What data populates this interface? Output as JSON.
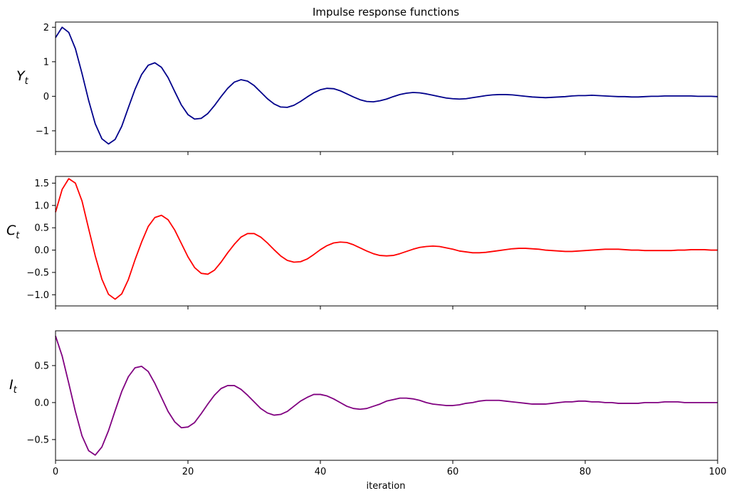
{
  "chart_data": {
    "type": "line",
    "title": "Impulse response functions",
    "xlabel": "iteration",
    "xlim": [
      0,
      100
    ],
    "xticks": [
      0,
      20,
      40,
      60,
      80,
      100
    ],
    "grid": false,
    "panels": [
      {
        "id": "Y",
        "ylabel": "Y",
        "ylabel_sub": "t",
        "color": "#00008b",
        "ylim": [
          -1.6,
          2.15
        ],
        "yticks": [
          -1,
          0,
          1,
          2
        ],
        "ytick_labels": [
          "−1",
          "0",
          "1",
          "2"
        ],
        "series": [
          {
            "values": [
              1.7,
              2.0,
              1.85,
              1.38,
              0.66,
              -0.12,
              -0.8,
              -1.23,
              -1.38,
              -1.25,
              -0.87,
              -0.33,
              0.2,
              0.63,
              0.9,
              0.97,
              0.84,
              0.54,
              0.14,
              -0.25,
              -0.53,
              -0.66,
              -0.64,
              -0.5,
              -0.27,
              -0.01,
              0.23,
              0.41,
              0.48,
              0.44,
              0.31,
              0.12,
              -0.07,
              -0.22,
              -0.31,
              -0.32,
              -0.26,
              -0.15,
              -0.02,
              0.1,
              0.19,
              0.23,
              0.22,
              0.16,
              0.07,
              -0.02,
              -0.1,
              -0.15,
              -0.16,
              -0.13,
              -0.08,
              -0.01,
              0.05,
              0.09,
              0.11,
              0.1,
              0.07,
              0.03,
              -0.01,
              -0.05,
              -0.07,
              -0.08,
              -0.07,
              -0.04,
              -0.01,
              0.02,
              0.04,
              0.05,
              0.05,
              0.04,
              0.02,
              -0.0,
              -0.02,
              -0.03,
              -0.04,
              -0.03,
              -0.02,
              -0.01,
              0.01,
              0.02,
              0.02,
              0.03,
              0.02,
              0.01,
              0.0,
              -0.01,
              -0.01,
              -0.02,
              -0.02,
              -0.01,
              -0.0,
              0.0,
              0.01,
              0.01,
              0.01,
              0.01,
              0.01,
              0.0,
              -0.0,
              -0.0,
              -0.01
            ]
          }
        ]
      },
      {
        "id": "C",
        "ylabel": "C",
        "ylabel_sub": "t",
        "color": "#ff0000",
        "ylim": [
          -1.25,
          1.65
        ],
        "yticks": [
          -1.0,
          -0.5,
          0.0,
          0.5,
          1.0,
          1.5
        ],
        "ytick_labels": [
          "−1.0",
          "−0.5",
          "0.0",
          "0.5",
          "1.0",
          "1.5"
        ],
        "series": [
          {
            "values": [
              0.85,
              1.36,
              1.6,
              1.5,
              1.1,
              0.48,
              -0.13,
              -0.65,
              -0.99,
              -1.1,
              -0.98,
              -0.66,
              -0.22,
              0.18,
              0.53,
              0.73,
              0.78,
              0.68,
              0.45,
              0.15,
              -0.15,
              -0.39,
              -0.52,
              -0.54,
              -0.45,
              -0.27,
              -0.06,
              0.13,
              0.29,
              0.37,
              0.37,
              0.29,
              0.16,
              0.01,
              -0.13,
              -0.23,
              -0.27,
              -0.26,
              -0.2,
              -0.1,
              0.01,
              0.1,
              0.16,
              0.18,
              0.17,
              0.12,
              0.05,
              -0.02,
              -0.08,
              -0.12,
              -0.13,
              -0.12,
              -0.08,
              -0.03,
              0.02,
              0.06,
              0.08,
              0.09,
              0.08,
              0.05,
              0.02,
              -0.02,
              -0.04,
              -0.06,
              -0.06,
              -0.05,
              -0.03,
              -0.01,
              0.01,
              0.03,
              0.04,
              0.04,
              0.03,
              0.02,
              0.0,
              -0.01,
              -0.02,
              -0.03,
              -0.03,
              -0.02,
              -0.01,
              0.0,
              0.01,
              0.02,
              0.02,
              0.02,
              0.01,
              0.0,
              -0.0,
              -0.01,
              -0.01,
              -0.01,
              -0.01,
              -0.01,
              0.0,
              0.0,
              0.01,
              0.01,
              0.01,
              0.0,
              0.0
            ]
          }
        ]
      },
      {
        "id": "I",
        "ylabel": "I",
        "ylabel_sub": "t",
        "color": "#800080",
        "ylim": [
          -0.78,
          0.97
        ],
        "yticks": [
          -0.5,
          0.0,
          0.5
        ],
        "ytick_labels": [
          "−0.5",
          "0.0",
          "0.5"
        ],
        "series": [
          {
            "values": [
              0.9,
              0.63,
              0.26,
              -0.12,
              -0.45,
              -0.65,
              -0.71,
              -0.6,
              -0.38,
              -0.11,
              0.15,
              0.35,
              0.47,
              0.49,
              0.42,
              0.26,
              0.07,
              -0.12,
              -0.26,
              -0.34,
              -0.33,
              -0.27,
              -0.15,
              -0.02,
              0.1,
              0.19,
              0.23,
              0.23,
              0.18,
              0.1,
              0.01,
              -0.08,
              -0.14,
              -0.17,
              -0.16,
              -0.12,
              -0.05,
              0.02,
              0.07,
              0.11,
              0.11,
              0.09,
              0.05,
              -0.0,
              -0.05,
              -0.08,
              -0.09,
              -0.08,
              -0.05,
              -0.02,
              0.02,
              0.04,
              0.06,
              0.06,
              0.05,
              0.03,
              0.0,
              -0.02,
              -0.03,
              -0.04,
              -0.04,
              -0.03,
              -0.01,
              0.0,
              0.02,
              0.03,
              0.03,
              0.03,
              0.02,
              0.01,
              -0.0,
              -0.01,
              -0.02,
              -0.02,
              -0.02,
              -0.01,
              -0.0,
              0.01,
              0.01,
              0.02,
              0.02,
              0.01,
              0.01,
              0.0,
              -0.0,
              -0.01,
              -0.01,
              -0.01,
              -0.01,
              -0.0,
              0.0,
              0.0,
              0.01,
              0.01,
              0.01,
              0.0,
              0.0,
              -0.0,
              -0.0,
              -0.0,
              -0.0
            ]
          }
        ]
      }
    ]
  }
}
